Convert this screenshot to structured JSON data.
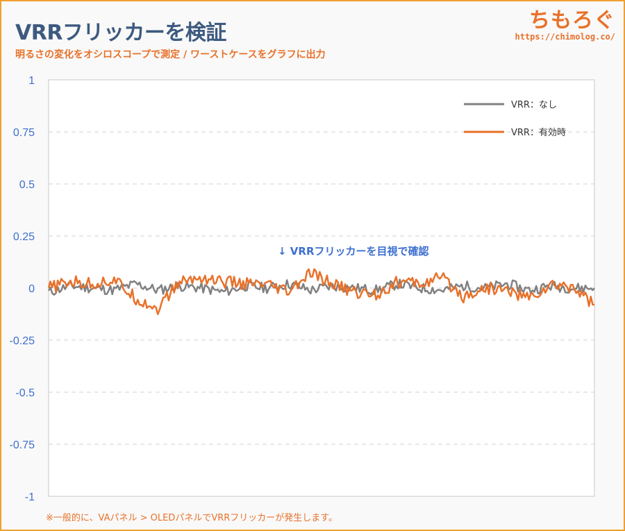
{
  "header": {
    "title": "VRRフリッカーを検証",
    "subtitle": "明るさの変化をオシロスコープで測定 / ワーストケースをグラフに出力",
    "brand_name": "ちもろぐ",
    "brand_url": "https://chimolog.co/"
  },
  "footnote": "※一般的に、VAパネル > OLEDパネルでVRRフリッカーが発生します。",
  "colors": {
    "title": "#3d5a80",
    "accent": "#e8712a",
    "tick": "#3d6fd0",
    "series_off": "#808080",
    "series_on": "#e8712a",
    "grid": "#d0d0d0"
  },
  "chart_data": {
    "type": "line",
    "title": "",
    "xlabel": "",
    "ylabel": "",
    "ylim": [
      -1,
      1
    ],
    "yticks": [
      1,
      0.75,
      0.5,
      0.25,
      0,
      -0.25,
      -0.5,
      -0.75,
      -1
    ],
    "ytick_labels": [
      "1",
      "0.75",
      "0.5",
      "0.25",
      "0",
      "-0.25",
      "-0.5",
      "-0.75",
      "-1"
    ],
    "grid": "horizontal-dashed",
    "legend_position": "top-right",
    "x": [
      0,
      4,
      8,
      12,
      16,
      20,
      24,
      28,
      32,
      36,
      40,
      44,
      48,
      52,
      56,
      60,
      64,
      68,
      72,
      76,
      80,
      84,
      88,
      92,
      96,
      100
    ],
    "series": [
      {
        "name": "VRR：なし",
        "color": "#808080",
        "values": [
          -0.02,
          0.01,
          0.0,
          -0.01,
          0.02,
          -0.01,
          0.01,
          0.0,
          -0.02,
          0.01,
          0.0,
          0.02,
          -0.01,
          0.01,
          0.0,
          -0.01,
          0.02,
          0.0,
          -0.01,
          0.01,
          0.0,
          0.02,
          -0.01,
          0.01,
          0.0,
          0.0
        ]
      },
      {
        "name": "VRR：有効時",
        "color": "#e8712a",
        "values": [
          0.0,
          0.03,
          0.02,
          0.04,
          -0.05,
          -0.1,
          0.03,
          0.05,
          0.03,
          0.02,
          0.01,
          -0.02,
          0.07,
          0.02,
          -0.02,
          -0.03,
          0.03,
          0.02,
          0.05,
          -0.04,
          0.0,
          -0.01,
          -0.05,
          0.01,
          0.01,
          -0.08
        ]
      }
    ],
    "annotation": "↓ VRRフリッカーを目視で確認"
  }
}
